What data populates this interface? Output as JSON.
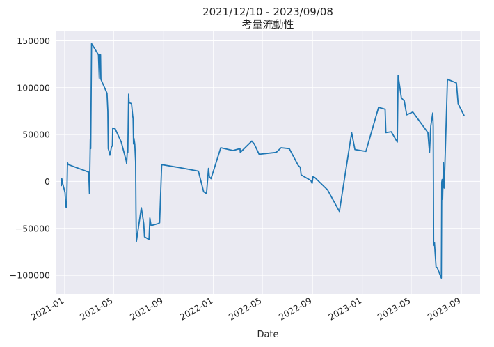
{
  "chart_data": {
    "type": "line",
    "title": "2021/12/10 - 2023/09/08",
    "subtitle": "考量流動性",
    "xlabel": "Date",
    "ylabel": "",
    "ylim": [
      -120000,
      160000
    ],
    "xlim": [
      "2020-12-10",
      "2023-10-17"
    ],
    "yticks": [
      -100000,
      -50000,
      0,
      50000,
      100000,
      150000
    ],
    "xticks": [
      "2021-01",
      "2021-05",
      "2021-09",
      "2022-01",
      "2022-05",
      "2022-09",
      "2023-01",
      "2023-05",
      "2023-09"
    ],
    "grid": true,
    "colors": {
      "background": "#eaeaf2",
      "grid": "#ffffff",
      "line": "#1f77b4"
    },
    "series": [
      {
        "values": [
          [
            "2020-12-24",
            -5000
          ],
          [
            "2020-12-25",
            3000
          ],
          [
            "2020-12-27",
            -2000
          ],
          [
            "2020-12-29",
            -5000
          ],
          [
            "2021-01-02",
            -12000
          ],
          [
            "2021-01-04",
            -27000
          ],
          [
            "2021-01-06",
            -28000
          ],
          [
            "2021-01-08",
            20000
          ],
          [
            "2021-01-10",
            18000
          ],
          [
            "2021-03-01",
            10000
          ],
          [
            "2021-03-03",
            -13000
          ],
          [
            "2021-03-05",
            45000
          ],
          [
            "2021-03-06",
            35000
          ],
          [
            "2021-03-08",
            147000
          ],
          [
            "2021-03-25",
            135000
          ],
          [
            "2021-03-27",
            110000
          ],
          [
            "2021-03-28",
            135000
          ],
          [
            "2021-03-30",
            135000
          ],
          [
            "2021-03-31",
            109000
          ],
          [
            "2021-04-15",
            94000
          ],
          [
            "2021-04-17",
            75000
          ],
          [
            "2021-04-18",
            35000
          ],
          [
            "2021-04-20",
            32000
          ],
          [
            "2021-04-22",
            28000
          ],
          [
            "2021-04-26",
            37000
          ],
          [
            "2021-04-28",
            38000
          ],
          [
            "2021-04-29",
            57000
          ],
          [
            "2021-05-05",
            56000
          ],
          [
            "2021-05-20",
            42000
          ],
          [
            "2021-06-01",
            22000
          ],
          [
            "2021-06-02",
            19000
          ],
          [
            "2021-06-04",
            34000
          ],
          [
            "2021-06-05",
            31000
          ],
          [
            "2021-06-07",
            93000
          ],
          [
            "2021-06-08",
            84000
          ],
          [
            "2021-06-14",
            83000
          ],
          [
            "2021-06-17",
            70000
          ],
          [
            "2021-06-18",
            67000
          ],
          [
            "2021-06-19",
            40000
          ],
          [
            "2021-06-20",
            46000
          ],
          [
            "2021-06-22",
            40000
          ],
          [
            "2021-06-24",
            21000
          ],
          [
            "2021-06-25",
            -30000
          ],
          [
            "2021-06-26",
            -64000
          ],
          [
            "2021-06-28",
            -58000
          ],
          [
            "2021-07-08",
            -28000
          ],
          [
            "2021-07-14",
            -45000
          ],
          [
            "2021-07-16",
            -59000
          ],
          [
            "2021-07-27",
            -62000
          ],
          [
            "2021-07-29",
            -39000
          ],
          [
            "2021-08-01",
            -47000
          ],
          [
            "2021-08-18",
            -45000
          ],
          [
            "2021-08-22",
            -44000
          ],
          [
            "2021-08-27",
            18000
          ],
          [
            "2021-10-20",
            14000
          ],
          [
            "2021-11-25",
            11000
          ],
          [
            "2021-12-08",
            -11000
          ],
          [
            "2021-12-15",
            -13000
          ],
          [
            "2021-12-20",
            14000
          ],
          [
            "2021-12-22",
            5000
          ],
          [
            "2021-12-26",
            3000
          ],
          [
            "2022-01-19",
            36000
          ],
          [
            "2022-02-18",
            33000
          ],
          [
            "2022-03-07",
            35000
          ],
          [
            "2022-03-08",
            31000
          ],
          [
            "2022-04-05",
            43000
          ],
          [
            "2022-04-11",
            40000
          ],
          [
            "2022-04-23",
            29000
          ],
          [
            "2022-06-04",
            31000
          ],
          [
            "2022-06-16",
            36000
          ],
          [
            "2022-07-06",
            35000
          ],
          [
            "2022-07-28",
            17000
          ],
          [
            "2022-08-02",
            15000
          ],
          [
            "2022-08-04",
            7000
          ],
          [
            "2022-08-28",
            1000
          ],
          [
            "2022-08-31",
            -2000
          ],
          [
            "2022-09-02",
            5000
          ],
          [
            "2022-09-07",
            4000
          ],
          [
            "2022-10-08",
            -9000
          ],
          [
            "2022-11-06",
            -32000
          ],
          [
            "2022-12-06",
            52000
          ],
          [
            "2022-12-14",
            34000
          ],
          [
            "2023-01-10",
            32000
          ],
          [
            "2023-02-10",
            79000
          ],
          [
            "2023-02-26",
            77000
          ],
          [
            "2023-02-28",
            52000
          ],
          [
            "2023-03-13",
            53000
          ],
          [
            "2023-03-28",
            42000
          ],
          [
            "2023-03-30",
            113000
          ],
          [
            "2023-04-07",
            89000
          ],
          [
            "2023-04-14",
            86000
          ],
          [
            "2023-04-20",
            71000
          ],
          [
            "2023-05-05",
            74000
          ],
          [
            "2023-06-11",
            52000
          ],
          [
            "2023-06-15",
            31000
          ],
          [
            "2023-06-18",
            59000
          ],
          [
            "2023-06-23",
            73000
          ],
          [
            "2023-06-24",
            59000
          ],
          [
            "2023-06-25",
            -68000
          ],
          [
            "2023-06-27",
            -65000
          ],
          [
            "2023-07-01",
            -91000
          ],
          [
            "2023-07-04",
            -92000
          ],
          [
            "2023-07-14",
            -103000
          ],
          [
            "2023-07-15",
            -1000
          ],
          [
            "2023-07-16",
            2000
          ],
          [
            "2023-07-17",
            -19000
          ],
          [
            "2023-07-19",
            20000
          ],
          [
            "2023-07-20",
            -5000
          ],
          [
            "2023-07-21",
            -7000
          ],
          [
            "2023-07-29",
            109000
          ],
          [
            "2023-08-20",
            105000
          ],
          [
            "2023-08-24",
            83000
          ],
          [
            "2023-09-08",
            70000
          ]
        ]
      }
    ]
  }
}
